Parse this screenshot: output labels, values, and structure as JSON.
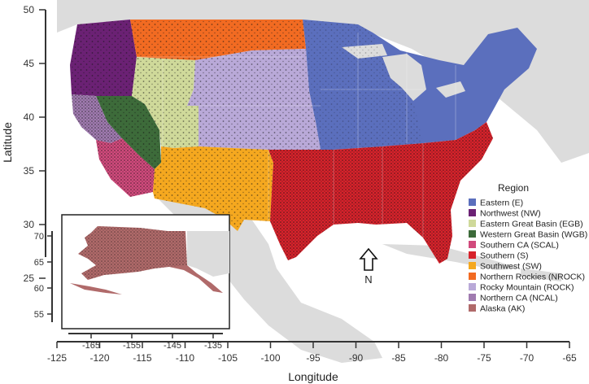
{
  "map": {
    "x_axis_title": "Longitude",
    "y_axis_title": "Latitude",
    "x_ticks": [
      "-125",
      "-120",
      "-115",
      "-110",
      "-105",
      "-100",
      "-95",
      "-90",
      "-85",
      "-80",
      "-75",
      "-70",
      "-65"
    ],
    "y_ticks": [
      "50",
      "45",
      "40",
      "35",
      "30",
      "25"
    ],
    "north_label": "N",
    "legend": {
      "title": "Region",
      "items": [
        {
          "label": "Eastern (E)",
          "color": "#5b6fbd"
        },
        {
          "label": "Northwest (NW)",
          "color": "#6b2174"
        },
        {
          "label": "Eastern Great Basin (EGB)",
          "color": "#cfd99a"
        },
        {
          "label": "Western Great Basin (WGB)",
          "color": "#3d6b3a"
        },
        {
          "label": "Southern CA (SCAL)",
          "color": "#d14a7c"
        },
        {
          "label": "Southern (S)",
          "color": "#d7222b"
        },
        {
          "label": "Southwest (SW)",
          "color": "#f5a81f"
        },
        {
          "label": "Northern Rockies (NROCK)",
          "color": "#f26b22"
        },
        {
          "label": "Rocky Mountain (ROCK)",
          "color": "#b9a9d8"
        },
        {
          "label": "Northern CA (NCAL)",
          "color": "#a07bb0"
        },
        {
          "label": "Alaska (AK)",
          "color": "#b06a6a"
        }
      ]
    },
    "inset": {
      "x_ticks": [
        "-165",
        "-155",
        "-145",
        "-135"
      ],
      "y_ticks": [
        "70",
        "65",
        "60",
        "55"
      ]
    },
    "background_land_color": "#dcdcdc"
  }
}
